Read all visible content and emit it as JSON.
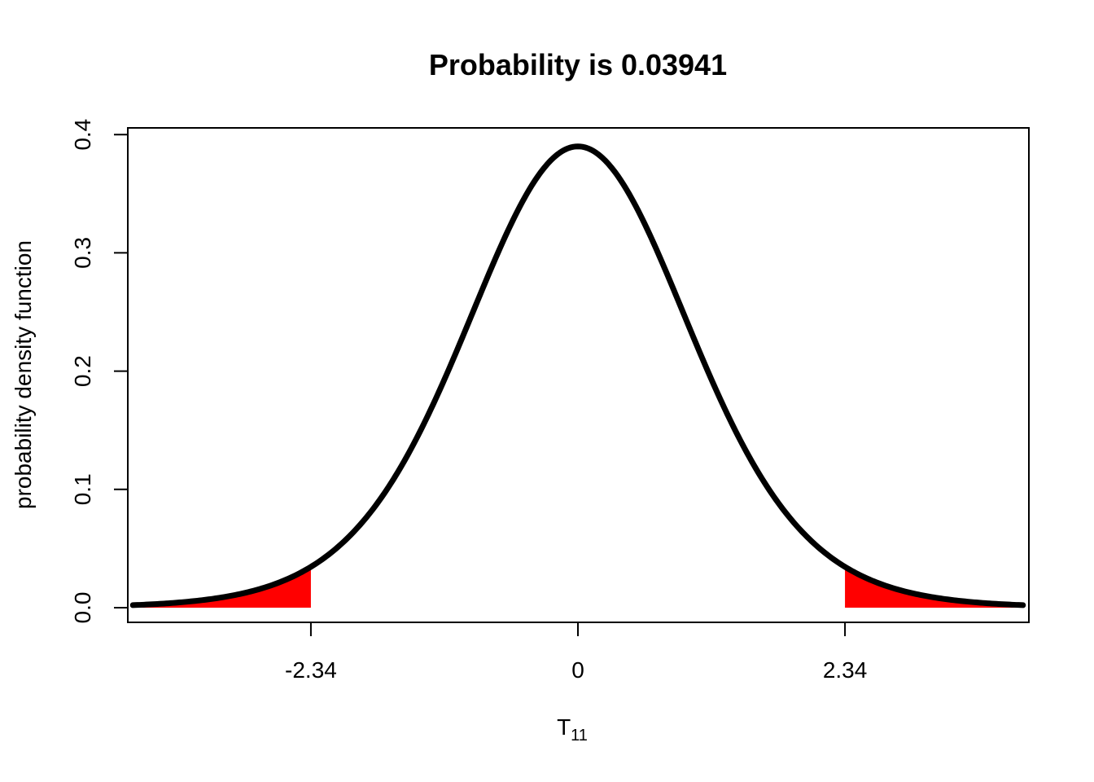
{
  "chart_data": {
    "type": "area",
    "title": "Probability is 0.03941",
    "xlabel": "T",
    "xlabel_subscript": "11",
    "ylabel": "probability  density  function",
    "distribution": "Student t",
    "degrees_of_freedom": 11,
    "x_range": [
      -3.9,
      3.9
    ],
    "ylim": [
      0,
      0.4
    ],
    "critical_value": 2.34,
    "shaded_probability": 0.03941,
    "x_ticks": [
      {
        "value": -2.34,
        "label": "-2.34"
      },
      {
        "value": 0,
        "label": "0"
      },
      {
        "value": 2.34,
        "label": "2.34"
      }
    ],
    "y_ticks": [
      {
        "value": 0.0,
        "label": "0.0"
      },
      {
        "value": 0.1,
        "label": "0.1"
      },
      {
        "value": 0.2,
        "label": "0.2"
      },
      {
        "value": 0.3,
        "label": "0.3"
      },
      {
        "value": 0.4,
        "label": "0.4"
      }
    ],
    "series": [
      {
        "name": "density",
        "color": "#000000",
        "x": [
          -3.9,
          -3.5,
          -3.0,
          -2.5,
          -2.34,
          -2.0,
          -1.5,
          -1.0,
          -0.5,
          0,
          0.5,
          1.0,
          1.5,
          2.0,
          2.34,
          2.5,
          3.0,
          3.5,
          3.9
        ],
        "y": [
          0.0033,
          0.0058,
          0.0116,
          0.025,
          0.0318,
          0.0574,
          0.1254,
          0.2295,
          0.3378,
          0.3898,
          0.3378,
          0.2295,
          0.1254,
          0.0574,
          0.0318,
          0.025,
          0.0116,
          0.0058,
          0.0033
        ]
      }
    ],
    "shaded_regions": [
      {
        "from": -3.9,
        "to": -2.34,
        "color": "#ff0000"
      },
      {
        "from": 2.34,
        "to": 3.9,
        "color": "#ff0000"
      }
    ],
    "grid": false,
    "legend": "none"
  }
}
